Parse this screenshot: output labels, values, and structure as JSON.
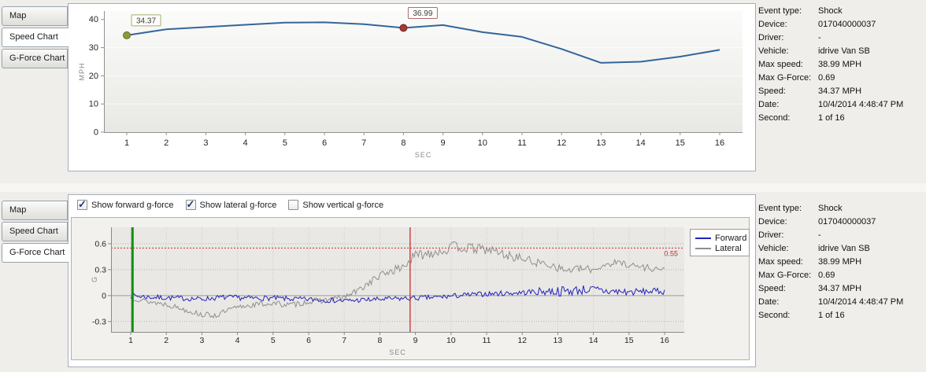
{
  "tabs": [
    "Map",
    "Speed Chart",
    "G-Force Chart"
  ],
  "sections": {
    "speed": {
      "active_tab": "Speed Chart"
    },
    "gforce": {
      "active_tab": "G-Force Chart"
    }
  },
  "info_panel": {
    "rows": [
      {
        "label": "Event type:",
        "value": "Shock"
      },
      {
        "label": "Device:",
        "value": "017040000037"
      },
      {
        "label": "Driver:",
        "value": "-"
      },
      {
        "label": "Vehicle:",
        "value": "idrive Van SB"
      },
      {
        "label": "Max speed:",
        "value": "38.99 MPH"
      },
      {
        "label": "Max G-Force:",
        "value": "0.69"
      },
      {
        "label": "Speed:",
        "value": "34.37 MPH"
      },
      {
        "label": "Date:",
        "value": "10/4/2014 4:48:47 PM"
      },
      {
        "label": "Second:",
        "value": "1 of 16"
      }
    ]
  },
  "gforce_controls": {
    "checkboxes": [
      {
        "label": "Show forward g-force",
        "checked": true
      },
      {
        "label": "Show lateral g-force",
        "checked": true
      },
      {
        "label": "Show vertical g-force",
        "checked": false
      }
    ]
  },
  "legend": {
    "entries": [
      {
        "label": "Forward",
        "color": "#2222bb"
      },
      {
        "label": "Lateral",
        "color": "#8f8f8f"
      }
    ]
  },
  "chart_data": [
    {
      "id": "speed",
      "type": "line",
      "title": "Speed Chart",
      "xlabel": "SEC",
      "ylabel": "MPH",
      "x": [
        1,
        2,
        3,
        4,
        5,
        6,
        7,
        8,
        9,
        10,
        11,
        12,
        13,
        14,
        15,
        16
      ],
      "xticks": [
        1,
        2,
        3,
        4,
        5,
        6,
        7,
        8,
        9,
        10,
        11,
        12,
        13,
        14,
        15,
        16
      ],
      "values": [
        34.37,
        36.5,
        37.3,
        38.1,
        38.9,
        38.99,
        38.3,
        36.99,
        38.0,
        35.5,
        33.8,
        29.5,
        24.6,
        25.0,
        26.8,
        29.2
      ],
      "line_color": "#33669b",
      "ylim": [
        0,
        43
      ],
      "yticks": [
        0,
        10,
        20,
        30,
        40
      ],
      "annotations": [
        {
          "x": 1,
          "y": 34.37,
          "label": "34.37",
          "marker_fill": "#8a9a3c",
          "marker_stroke": "#66762a",
          "box_border": "#a3ad6a"
        },
        {
          "x": 8,
          "y": 36.99,
          "label": "36.99",
          "marker_fill": "#a23a38",
          "marker_stroke": "#7b2220",
          "box_border": "#b06a68"
        }
      ]
    },
    {
      "id": "gforce",
      "type": "line",
      "title": "G-Force Chart",
      "xlabel": "SEC",
      "ylabel": "G",
      "xlim": [
        1,
        16
      ],
      "xticks": [
        1,
        2,
        3,
        4,
        5,
        6,
        7,
        8,
        9,
        10,
        11,
        12,
        13,
        14,
        15,
        16
      ],
      "ylim": [
        -0.42,
        0.79
      ],
      "yticks": [
        -0.3,
        0,
        0.3,
        0.6
      ],
      "series": [
        {
          "name": "Forward",
          "color": "#2222bb",
          "seed": 7,
          "keypoints": [
            [
              1,
              0
            ],
            [
              1.6,
              -0.02
            ],
            [
              2.4,
              -0.03
            ],
            [
              3,
              -0.04
            ],
            [
              3.6,
              -0.02
            ],
            [
              4.4,
              -0.03
            ],
            [
              5,
              -0.03
            ],
            [
              5.6,
              -0.04
            ],
            [
              6.4,
              -0.05
            ],
            [
              7,
              -0.06
            ],
            [
              7.6,
              -0.05
            ],
            [
              8.2,
              -0.04
            ],
            [
              9,
              -0.03
            ],
            [
              9.6,
              -0.02
            ],
            [
              10.2,
              0
            ],
            [
              11,
              0.02
            ],
            [
              11.8,
              0.03
            ],
            [
              12.6,
              0.05
            ],
            [
              13.2,
              0.05
            ],
            [
              13.8,
              0.07
            ],
            [
              14.4,
              0.05
            ],
            [
              15,
              0.04
            ],
            [
              15.6,
              0.05
            ],
            [
              16,
              0.05
            ]
          ],
          "noise_keypoints": [
            [
              1,
              0.03
            ],
            [
              12,
              0.03
            ],
            [
              13,
              0.06
            ],
            [
              14.5,
              0.055
            ],
            [
              15.5,
              0.035
            ],
            [
              16,
              0.04
            ]
          ]
        },
        {
          "name": "Lateral",
          "color": "#8f8f8f",
          "seed": 13,
          "keypoints": [
            [
              1,
              -0.02
            ],
            [
              1.5,
              -0.07
            ],
            [
              2,
              -0.1
            ],
            [
              2.5,
              -0.16
            ],
            [
              3,
              -0.22
            ],
            [
              3.4,
              -0.23
            ],
            [
              3.8,
              -0.16
            ],
            [
              4.2,
              -0.12
            ],
            [
              4.6,
              -0.1
            ],
            [
              5,
              -0.09
            ],
            [
              5.5,
              -0.11
            ],
            [
              6,
              -0.07
            ],
            [
              6.5,
              -0.05
            ],
            [
              7,
              -0.02
            ],
            [
              7.4,
              0.06
            ],
            [
              7.8,
              0.18
            ],
            [
              8.2,
              0.27
            ],
            [
              8.6,
              0.32
            ],
            [
              9,
              0.46
            ],
            [
              9.4,
              0.5
            ],
            [
              9.8,
              0.52
            ],
            [
              10.1,
              0.57
            ],
            [
              10.4,
              0.55
            ],
            [
              10.8,
              0.54
            ],
            [
              11.2,
              0.52
            ],
            [
              11.6,
              0.46
            ],
            [
              12,
              0.43
            ],
            [
              12.4,
              0.38
            ],
            [
              12.8,
              0.36
            ],
            [
              13.2,
              0.29
            ],
            [
              13.6,
              0.31
            ],
            [
              14,
              0.3
            ],
            [
              14.4,
              0.37
            ],
            [
              14.8,
              0.38
            ],
            [
              15.2,
              0.34
            ],
            [
              15.6,
              0.32
            ],
            [
              16,
              0.3
            ]
          ],
          "noise_keypoints": [
            [
              1,
              0.03
            ],
            [
              7,
              0.035
            ],
            [
              8.5,
              0.05
            ],
            [
              9,
              0.065
            ],
            [
              11.5,
              0.055
            ],
            [
              13,
              0.045
            ],
            [
              16,
              0.04
            ]
          ]
        }
      ],
      "vlines": [
        {
          "x": 1.05,
          "color": "#0f8f0f",
          "width": 3
        },
        {
          "x": 8.85,
          "color": "#cc2a2a",
          "width": 1.3
        }
      ],
      "threshold": {
        "y": 0.55,
        "label": "0.55",
        "color": "#cc2a2a"
      }
    }
  ]
}
